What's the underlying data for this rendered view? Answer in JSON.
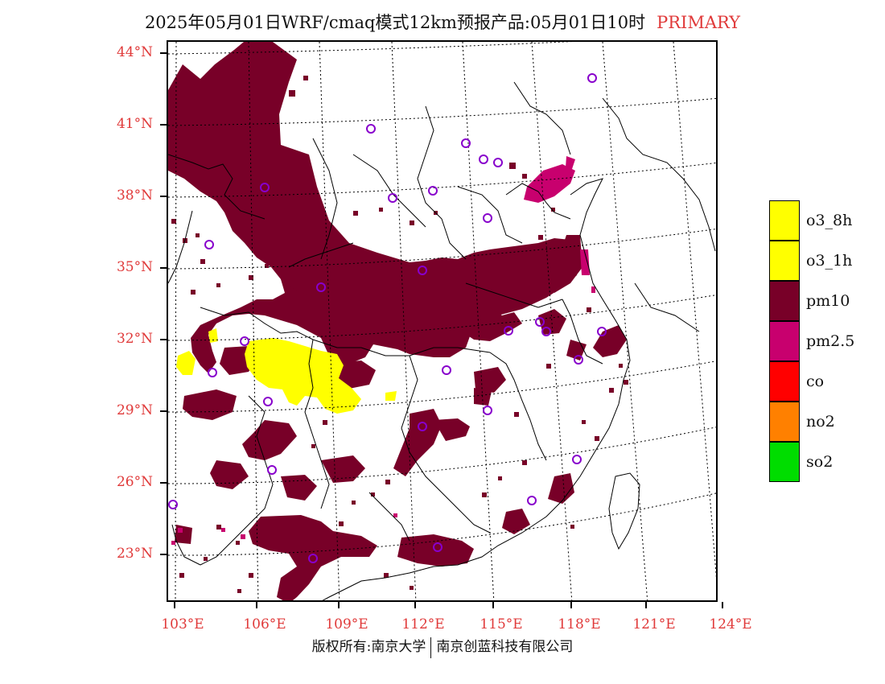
{
  "title": {
    "text": "2025年05月01日WRF/cmaq模式12km预报产品:05月01日10时",
    "primary": "PRIMARY"
  },
  "map": {
    "lat_labels": [
      "44°N",
      "41°N",
      "38°N",
      "35°N",
      "32°N",
      "29°N",
      "26°N",
      "23°N"
    ],
    "lon_labels": [
      "103°E",
      "106°E",
      "109°E",
      "112°E",
      "115°E",
      "118°E",
      "121°E",
      "124°E"
    ],
    "colors": {
      "pm10": "#780028",
      "pm25": "#c8006e",
      "o3": "#ffff00",
      "station_marker": "#8800cc",
      "label_red": "#e03a3a"
    },
    "station_count": 29
  },
  "legend": [
    {
      "label": "o3_8h",
      "color": "#ffff00"
    },
    {
      "label": "o3_1h",
      "color": "#ffff00"
    },
    {
      "label": "pm10",
      "color": "#780028"
    },
    {
      "label": "pm2.5",
      "color": "#c8006e"
    },
    {
      "label": "co",
      "color": "#ff0000"
    },
    {
      "label": "no2",
      "color": "#ff8000"
    },
    {
      "label": "so2",
      "color": "#00dd00"
    }
  ],
  "footer": {
    "left": "版权所有:南京大学",
    "right": "南京创蓝科技有限公司"
  }
}
